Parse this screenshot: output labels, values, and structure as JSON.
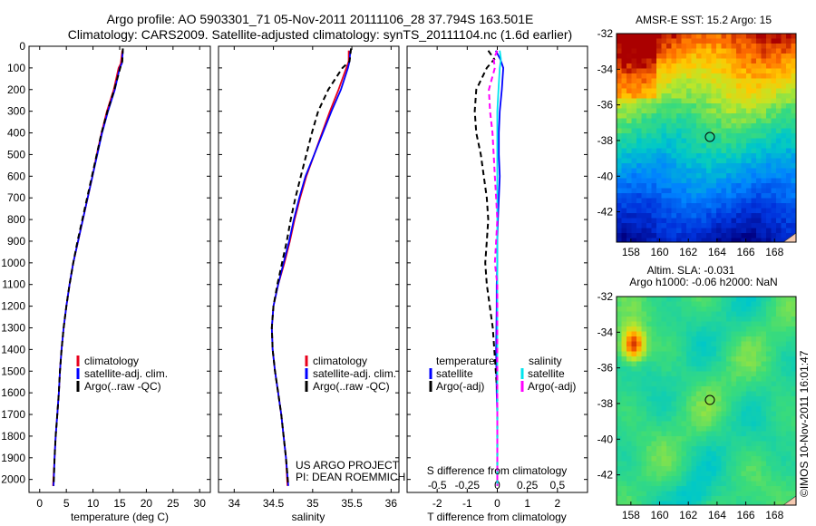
{
  "header": {
    "line1": "Argo profile: AO 5903301_71 05-Nov-2011 20111106_28 37.794S 163.501E",
    "line2": "Climatology: CARS2009. Satellite-adjusted climatology: synTS_20111104.nc (1.6d earlier)"
  },
  "credit": {
    "project": "US ARGO PROJECT",
    "pi": "PI: DEAN ROEMMICH",
    "imos": "©IMOS 10-Nov-2011 16:01:47"
  },
  "colors": {
    "climatology": "#e8001c",
    "satellite": "#0000ff",
    "argo": "#000000",
    "sal_satellite": "#00e5ee",
    "sal_argo": "#ff00ff"
  },
  "chart_data": [
    {
      "id": "temperature",
      "type": "line",
      "xlabel": "temperature (deg C)",
      "xlim": [
        -2,
        32
      ],
      "ylim": [
        0,
        2060
      ],
      "y_reversed": true,
      "xticks": [
        0,
        5,
        10,
        15,
        20,
        25,
        30
      ],
      "yticks": [
        0,
        100,
        200,
        300,
        400,
        500,
        600,
        700,
        800,
        900,
        1000,
        1100,
        1200,
        1300,
        1400,
        1500,
        1600,
        1700,
        1800,
        1900,
        2000
      ],
      "legend": [
        "climatology",
        "satellite-adj. clim.",
        "Argo(..raw -QC)"
      ],
      "series": [
        {
          "name": "climatology",
          "style": "solid",
          "color": "climatology",
          "points": [
            [
              15.5,
              20
            ],
            [
              15.2,
              80
            ],
            [
              14.8,
              100
            ],
            [
              13.9,
              200
            ],
            [
              12.6,
              300
            ],
            [
              11.6,
              400
            ],
            [
              10.7,
              500
            ],
            [
              9.9,
              600
            ],
            [
              9.0,
              700
            ],
            [
              8.1,
              800
            ],
            [
              7.2,
              900
            ],
            [
              6.3,
              1000
            ],
            [
              5.6,
              1100
            ],
            [
              5.0,
              1200
            ],
            [
              4.5,
              1300
            ],
            [
              4.1,
              1400
            ],
            [
              3.8,
              1500
            ],
            [
              3.6,
              1600
            ],
            [
              3.3,
              1700
            ],
            [
              3.0,
              1800
            ],
            [
              2.8,
              1900
            ],
            [
              2.5,
              2030
            ]
          ]
        },
        {
          "name": "satellite-adj. clim.",
          "style": "solid",
          "color": "satellite",
          "points": [
            [
              15.6,
              20
            ],
            [
              15.4,
              80
            ],
            [
              15.0,
              100
            ],
            [
              14.1,
              200
            ],
            [
              12.8,
              300
            ],
            [
              11.7,
              400
            ],
            [
              10.8,
              500
            ],
            [
              9.9,
              600
            ],
            [
              9.0,
              700
            ],
            [
              8.1,
              800
            ],
            [
              7.2,
              900
            ],
            [
              6.3,
              1000
            ],
            [
              5.6,
              1100
            ],
            [
              5.0,
              1200
            ],
            [
              4.5,
              1300
            ],
            [
              4.1,
              1400
            ],
            [
              3.8,
              1500
            ],
            [
              3.6,
              1600
            ],
            [
              3.3,
              1700
            ],
            [
              3.0,
              1800
            ],
            [
              2.8,
              1900
            ],
            [
              2.6,
              2030
            ]
          ]
        },
        {
          "name": "Argo(..raw -QC)",
          "style": "dash",
          "color": "argo",
          "points": [
            [
              15.6,
              10
            ],
            [
              15.5,
              70
            ],
            [
              15.1,
              100
            ],
            [
              14.0,
              200
            ],
            [
              12.7,
              300
            ],
            [
              11.6,
              400
            ],
            [
              10.7,
              500
            ],
            [
              9.8,
              600
            ],
            [
              8.9,
              700
            ],
            [
              8.0,
              800
            ],
            [
              7.1,
              900
            ],
            [
              6.3,
              1000
            ],
            [
              5.6,
              1100
            ],
            [
              5.0,
              1200
            ],
            [
              4.5,
              1300
            ],
            [
              4.1,
              1400
            ],
            [
              3.8,
              1500
            ],
            [
              3.6,
              1600
            ],
            [
              3.3,
              1700
            ],
            [
              3.0,
              1800
            ],
            [
              2.8,
              1900
            ],
            [
              2.6,
              2030
            ]
          ]
        }
      ]
    },
    {
      "id": "salinity",
      "type": "line",
      "xlabel": "salinity",
      "xlim": [
        33.8,
        36.1
      ],
      "ylim": [
        0,
        2060
      ],
      "y_reversed": true,
      "xticks": [
        34,
        34.5,
        35,
        35.5,
        36
      ],
      "xticklabels": [
        "34",
        "34.5",
        "35",
        "35.5",
        "36"
      ],
      "legend": [
        "climatology",
        "satellite-adj. clim.",
        "Argo(..raw -QC)"
      ],
      "series": [
        {
          "name": "climatology",
          "style": "solid",
          "color": "climatology",
          "points": [
            [
              35.46,
              20
            ],
            [
              35.46,
              70
            ],
            [
              35.43,
              100
            ],
            [
              35.33,
              200
            ],
            [
              35.22,
              300
            ],
            [
              35.12,
              400
            ],
            [
              35.02,
              500
            ],
            [
              34.92,
              600
            ],
            [
              34.84,
              700
            ],
            [
              34.77,
              800
            ],
            [
              34.71,
              900
            ],
            [
              34.64,
              1000
            ],
            [
              34.56,
              1100
            ],
            [
              34.5,
              1200
            ],
            [
              34.48,
              1300
            ],
            [
              34.49,
              1400
            ],
            [
              34.52,
              1500
            ],
            [
              34.56,
              1600
            ],
            [
              34.6,
              1700
            ],
            [
              34.63,
              1800
            ],
            [
              34.66,
              1900
            ],
            [
              34.68,
              2030
            ]
          ]
        },
        {
          "name": "satellite-adj. clim.",
          "style": "solid",
          "color": "satellite",
          "points": [
            [
              35.48,
              20
            ],
            [
              35.47,
              70
            ],
            [
              35.45,
              100
            ],
            [
              35.36,
              200
            ],
            [
              35.24,
              300
            ],
            [
              35.13,
              400
            ],
            [
              35.02,
              500
            ],
            [
              34.91,
              600
            ],
            [
              34.83,
              700
            ],
            [
              34.76,
              800
            ],
            [
              34.7,
              900
            ],
            [
              34.63,
              1000
            ],
            [
              34.56,
              1100
            ],
            [
              34.5,
              1200
            ],
            [
              34.48,
              1300
            ],
            [
              34.49,
              1400
            ],
            [
              34.52,
              1500
            ],
            [
              34.56,
              1600
            ],
            [
              34.6,
              1700
            ],
            [
              34.63,
              1800
            ],
            [
              34.66,
              1900
            ],
            [
              34.69,
              2030
            ]
          ]
        },
        {
          "name": "Argo(..raw -QC)",
          "style": "dash",
          "color": "argo",
          "points": [
            [
              35.49,
              10
            ],
            [
              35.47,
              70
            ],
            [
              35.38,
              100
            ],
            [
              35.2,
              200
            ],
            [
              35.07,
              300
            ],
            [
              34.99,
              400
            ],
            [
              34.92,
              500
            ],
            [
              34.85,
              600
            ],
            [
              34.78,
              700
            ],
            [
              34.72,
              800
            ],
            [
              34.67,
              900
            ],
            [
              34.61,
              1000
            ],
            [
              34.55,
              1100
            ],
            [
              34.5,
              1200
            ],
            [
              34.48,
              1300
            ],
            [
              34.49,
              1400
            ],
            [
              34.52,
              1500
            ],
            [
              34.56,
              1600
            ],
            [
              34.6,
              1700
            ],
            [
              34.63,
              1800
            ],
            [
              34.66,
              1900
            ],
            [
              34.69,
              2030
            ]
          ]
        }
      ]
    },
    {
      "id": "difference",
      "type": "line",
      "xlabel": "T difference from climatology",
      "top_axis_label": "S difference from climatology",
      "xlim": [
        -3,
        3
      ],
      "top_xlim": [
        -0.75,
        0.75
      ],
      "ylim": [
        0,
        2060
      ],
      "y_reversed": true,
      "xticks": [
        -2,
        -1,
        0,
        1,
        2
      ],
      "top_xticks": [
        -0.5,
        -0.25,
        0,
        0.25,
        0.5
      ],
      "legend_headers": [
        "temperature",
        "salinity"
      ],
      "legend": [
        "satellite",
        "Argo(-adj)",
        "satellite",
        "Argo(-adj)"
      ],
      "series": [
        {
          "name": "T satellite",
          "style": "solid",
          "color": "satellite",
          "axis": "T",
          "points": [
            [
              -0.05,
              20
            ],
            [
              0.1,
              60
            ],
            [
              0.2,
              100
            ],
            [
              0.15,
              200
            ],
            [
              0.08,
              300
            ],
            [
              0.05,
              400
            ],
            [
              0.05,
              500
            ],
            [
              0.08,
              600
            ],
            [
              0.05,
              700
            ],
            [
              0.02,
              800
            ],
            [
              0.0,
              900
            ],
            [
              0.0,
              1000
            ],
            [
              -0.02,
              1100
            ],
            [
              -0.02,
              1200
            ],
            [
              -0.03,
              1300
            ],
            [
              -0.04,
              1400
            ],
            [
              -0.03,
              1500
            ],
            [
              -0.02,
              1600
            ],
            [
              0.0,
              1700
            ],
            [
              0.0,
              1800
            ],
            [
              0.0,
              1900
            ],
            [
              0.0,
              2030
            ]
          ]
        },
        {
          "name": "T Argo(-adj)",
          "style": "dash",
          "color": "argo",
          "axis": "T",
          "points": [
            [
              -0.3,
              20
            ],
            [
              -0.1,
              60
            ],
            [
              -0.35,
              100
            ],
            [
              -0.7,
              200
            ],
            [
              -0.75,
              300
            ],
            [
              -0.7,
              400
            ],
            [
              -0.55,
              500
            ],
            [
              -0.45,
              600
            ],
            [
              -0.35,
              700
            ],
            [
              -0.3,
              800
            ],
            [
              -0.35,
              900
            ],
            [
              -0.4,
              1000
            ],
            [
              -0.35,
              1100
            ],
            [
              -0.25,
              1200
            ],
            [
              -0.15,
              1300
            ],
            [
              -0.1,
              1400
            ],
            [
              -0.05,
              1500
            ],
            [
              0.0,
              1600
            ],
            [
              0.0,
              1700
            ],
            [
              0.0,
              1800
            ],
            [
              0.0,
              1900
            ],
            [
              0.0,
              2030
            ]
          ]
        },
        {
          "name": "S satellite",
          "style": "solid",
          "color": "sal_satellite",
          "axis": "S",
          "points": [
            [
              0.02,
              20
            ],
            [
              0.03,
              60
            ],
            [
              0.02,
              100
            ],
            [
              0.01,
              200
            ],
            [
              0.0,
              300
            ],
            [
              0.0,
              400
            ],
            [
              0.0,
              500
            ],
            [
              0.0,
              600
            ],
            [
              0.0,
              700
            ],
            [
              0.0,
              800
            ],
            [
              0.0,
              900
            ],
            [
              0.0,
              1000
            ],
            [
              0.0,
              1100
            ],
            [
              0.0,
              1200
            ],
            [
              0.0,
              1300
            ],
            [
              0.0,
              1400
            ],
            [
              0.0,
              1500
            ],
            [
              0.0,
              1600
            ],
            [
              0.0,
              1700
            ],
            [
              0.0,
              1800
            ],
            [
              0.0,
              1900
            ],
            [
              0.0,
              2030
            ]
          ]
        },
        {
          "name": "S Argo(-adj)",
          "style": "dash",
          "color": "sal_argo",
          "axis": "S",
          "points": [
            [
              0.0,
              20
            ],
            [
              -0.03,
              60
            ],
            [
              -0.02,
              100
            ],
            [
              -0.07,
              200
            ],
            [
              -0.06,
              300
            ],
            [
              -0.04,
              400
            ],
            [
              -0.03,
              500
            ],
            [
              -0.02,
              600
            ],
            [
              -0.01,
              700
            ],
            [
              0.0,
              800
            ],
            [
              -0.01,
              900
            ],
            [
              -0.02,
              1000
            ],
            [
              0.0,
              1100
            ],
            [
              0.0,
              1200
            ],
            [
              0.0,
              1300
            ],
            [
              0.0,
              1400
            ],
            [
              0.0,
              1500
            ],
            [
              0.0,
              1600
            ],
            [
              0.0,
              1700
            ],
            [
              0.0,
              1800
            ],
            [
              0.0,
              1900
            ],
            [
              0.0,
              2030
            ]
          ]
        }
      ]
    },
    {
      "id": "sst_map",
      "type": "heatmap",
      "title": "AMSR-E SST: 15.2 Argo: 15",
      "xlim": [
        157,
        169.5
      ],
      "ylim": [
        -43.7,
        -32
      ],
      "xticks": [
        158,
        160,
        162,
        164,
        166,
        168
      ],
      "yticks": [
        -32,
        -34,
        -36,
        -38,
        -40,
        -42
      ],
      "marker": [
        163.5,
        -37.8
      ]
    },
    {
      "id": "sla_map",
      "type": "heatmap",
      "title_line1": "Altim. SLA: -0.031",
      "title_line2": "Argo h1000: -0.06 h2000: NaN",
      "xlim": [
        157,
        169.5
      ],
      "ylim": [
        -43.7,
        -32
      ],
      "xticks": [
        158,
        160,
        162,
        164,
        166,
        168
      ],
      "yticks": [
        -32,
        -34,
        -36,
        -38,
        -40,
        -42
      ],
      "marker": [
        163.5,
        -37.8
      ]
    }
  ]
}
